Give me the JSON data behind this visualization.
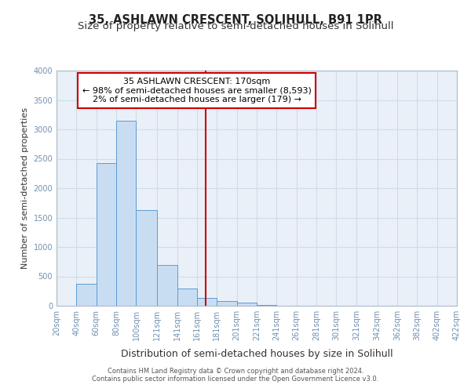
{
  "title": "35, ASHLAWN CRESCENT, SOLIHULL, B91 1PR",
  "subtitle": "Size of property relative to semi-detached houses in Solihull",
  "xlabel": "Distribution of semi-detached houses by size in Solihull",
  "ylabel": "Number of semi-detached properties",
  "footnote1": "Contains HM Land Registry data © Crown copyright and database right 2024.",
  "footnote2": "Contains public sector information licensed under the Open Government Licence v3.0.",
  "bar_left_edges": [
    20,
    40,
    60,
    80,
    100,
    121,
    141,
    161,
    181,
    201,
    221,
    241,
    261,
    281,
    301,
    321,
    342,
    362,
    382,
    402
  ],
  "bar_widths": [
    20,
    20,
    20,
    20,
    21,
    20,
    20,
    20,
    20,
    20,
    20,
    20,
    20,
    20,
    20,
    21,
    20,
    20,
    20,
    20
  ],
  "bar_heights": [
    0,
    375,
    2425,
    3150,
    1625,
    700,
    300,
    130,
    75,
    50,
    10,
    5,
    2,
    1,
    0,
    0,
    0,
    0,
    0,
    0
  ],
  "bar_color": "#c9ddf2",
  "bar_edge_color": "#5b9bd5",
  "property_line_x": 170,
  "property_line_color": "#cc0000",
  "annotation_title": "35 ASHLAWN CRESCENT: 170sqm",
  "annotation_line1": "← 98% of semi-detached houses are smaller (8,593)",
  "annotation_line2": "2% of semi-detached houses are larger (179) →",
  "annotation_box_color": "#cc0000",
  "ylim": [
    0,
    4000
  ],
  "xlim": [
    20,
    422
  ],
  "xtick_labels": [
    "20sqm",
    "40sqm",
    "60sqm",
    "80sqm",
    "100sqm",
    "121sqm",
    "141sqm",
    "161sqm",
    "181sqm",
    "201sqm",
    "221sqm",
    "241sqm",
    "261sqm",
    "281sqm",
    "301sqm",
    "321sqm",
    "342sqm",
    "362sqm",
    "382sqm",
    "402sqm",
    "422sqm"
  ],
  "xtick_positions": [
    20,
    40,
    60,
    80,
    100,
    121,
    141,
    161,
    181,
    201,
    221,
    241,
    261,
    281,
    301,
    321,
    342,
    362,
    382,
    402,
    422
  ],
  "ytick_positions": [
    0,
    500,
    1000,
    1500,
    2000,
    2500,
    3000,
    3500,
    4000
  ],
  "grid_color": "#d0dce8",
  "plot_bg_color": "#eaf0f8",
  "background_color": "#ffffff",
  "title_fontsize": 10.5,
  "subtitle_fontsize": 9.5,
  "xlabel_fontsize": 9,
  "ylabel_fontsize": 8,
  "tick_fontsize": 7,
  "tick_color": "#7090b0",
  "footnote_fontsize": 6,
  "footnote_color": "#555555"
}
